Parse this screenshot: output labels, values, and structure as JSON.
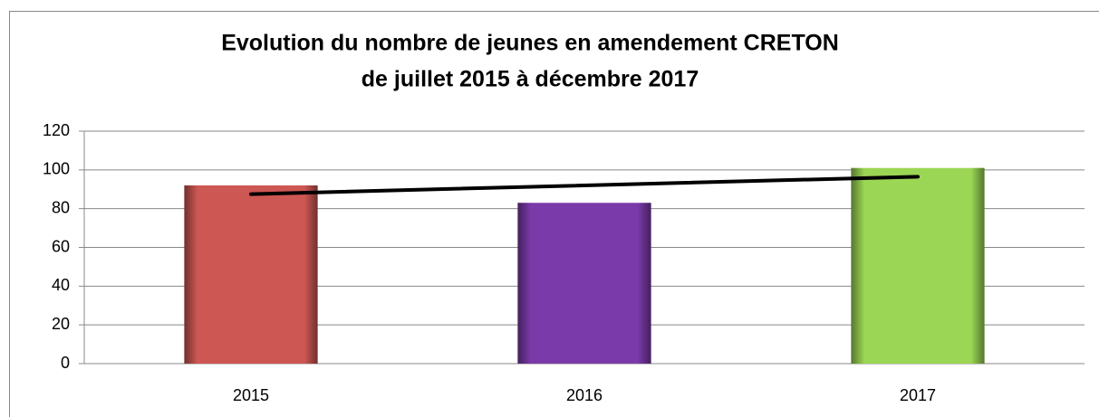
{
  "chart_data": {
    "type": "bar",
    "title": [
      "Evolution du nombre de jeunes en amendement CRETON",
      "de juillet 2015 à décembre 2017"
    ],
    "categories": [
      "2015",
      "2016",
      "2017"
    ],
    "values": [
      92,
      83,
      101
    ],
    "colors": [
      "#cd5753",
      "#7b3aa9",
      "#9bd654"
    ],
    "trendline": {
      "type": "linear",
      "color": "#000000"
    },
    "ylim": [
      0,
      120
    ],
    "yticks": [
      0,
      20,
      40,
      60,
      80,
      100,
      120
    ],
    "grid": true
  }
}
